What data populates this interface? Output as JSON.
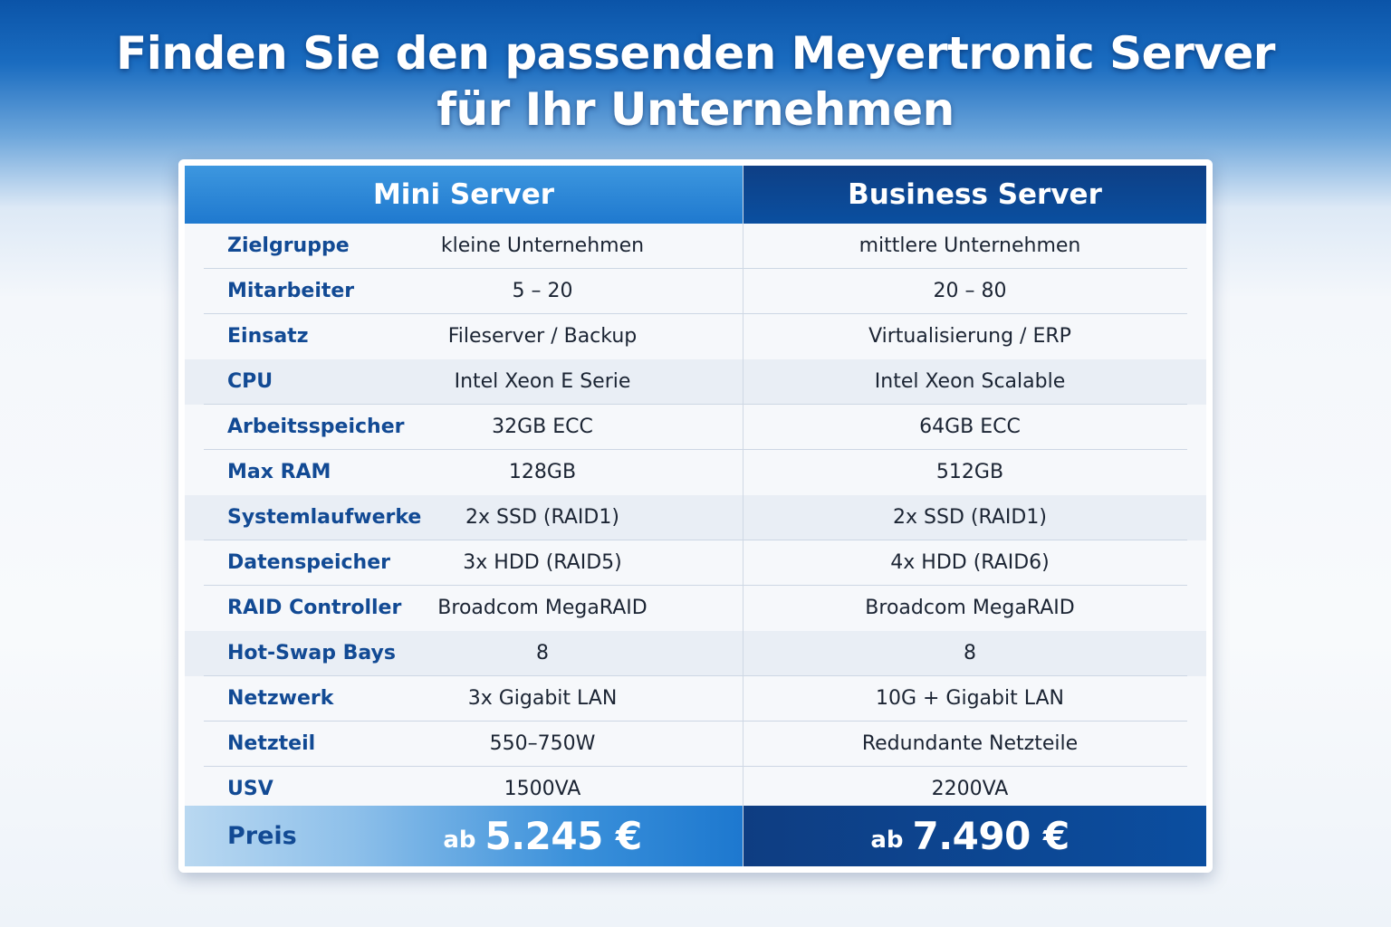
{
  "title": {
    "line1": "Finden Sie den passenden Meyertronic Server",
    "line2": "für Ihr Unternehmen"
  },
  "columns": {
    "mini": "Mini Server",
    "business": "Business Server"
  },
  "rows": [
    {
      "label": "Zielgruppe",
      "mini": "kleine Unternehmen",
      "business": "mittlere Unternehmen"
    },
    {
      "label": "Mitarbeiter",
      "mini": "5 – 20",
      "business": "20 – 80"
    },
    {
      "label": "Einsatz",
      "mini": "Fileserver / Backup",
      "business": "Virtualisierung / ERP"
    },
    {
      "label": "CPU",
      "mini": "Intel Xeon E Serie",
      "business": "Intel Xeon Scalable"
    },
    {
      "label": "Arbeitsspeicher",
      "mini": "32GB ECC",
      "business": "64GB ECC"
    },
    {
      "label": "Max RAM",
      "mini": "128GB",
      "business": "512GB"
    },
    {
      "label": "Systemlaufwerke",
      "mini": "2x SSD (RAID1)",
      "business": "2x SSD (RAID1)"
    },
    {
      "label": "Datenspeicher",
      "mini": "3x HDD (RAID5)",
      "business": "4x HDD (RAID6)"
    },
    {
      "label": "RAID Controller",
      "mini": "Broadcom MegaRAID",
      "business": "Broadcom MegaRAID"
    },
    {
      "label": "Hot-Swap Bays",
      "mini": "8",
      "business": "8"
    },
    {
      "label": "Netzwerk",
      "mini": "3x Gigabit LAN",
      "business": "10G + Gigabit LAN"
    },
    {
      "label": "Netzteil",
      "mini": "550–750W",
      "business": "Redundante Netzteile"
    },
    {
      "label": "USV",
      "mini": "1500VA",
      "business": "2200VA"
    }
  ],
  "price": {
    "label": "Preis",
    "prefix": "ab",
    "mini": "5.245 €",
    "business": "7.490 €"
  },
  "colors": {
    "header_mini": "#2a86d6",
    "header_business": "#0c468f",
    "label_text": "#124a94"
  }
}
